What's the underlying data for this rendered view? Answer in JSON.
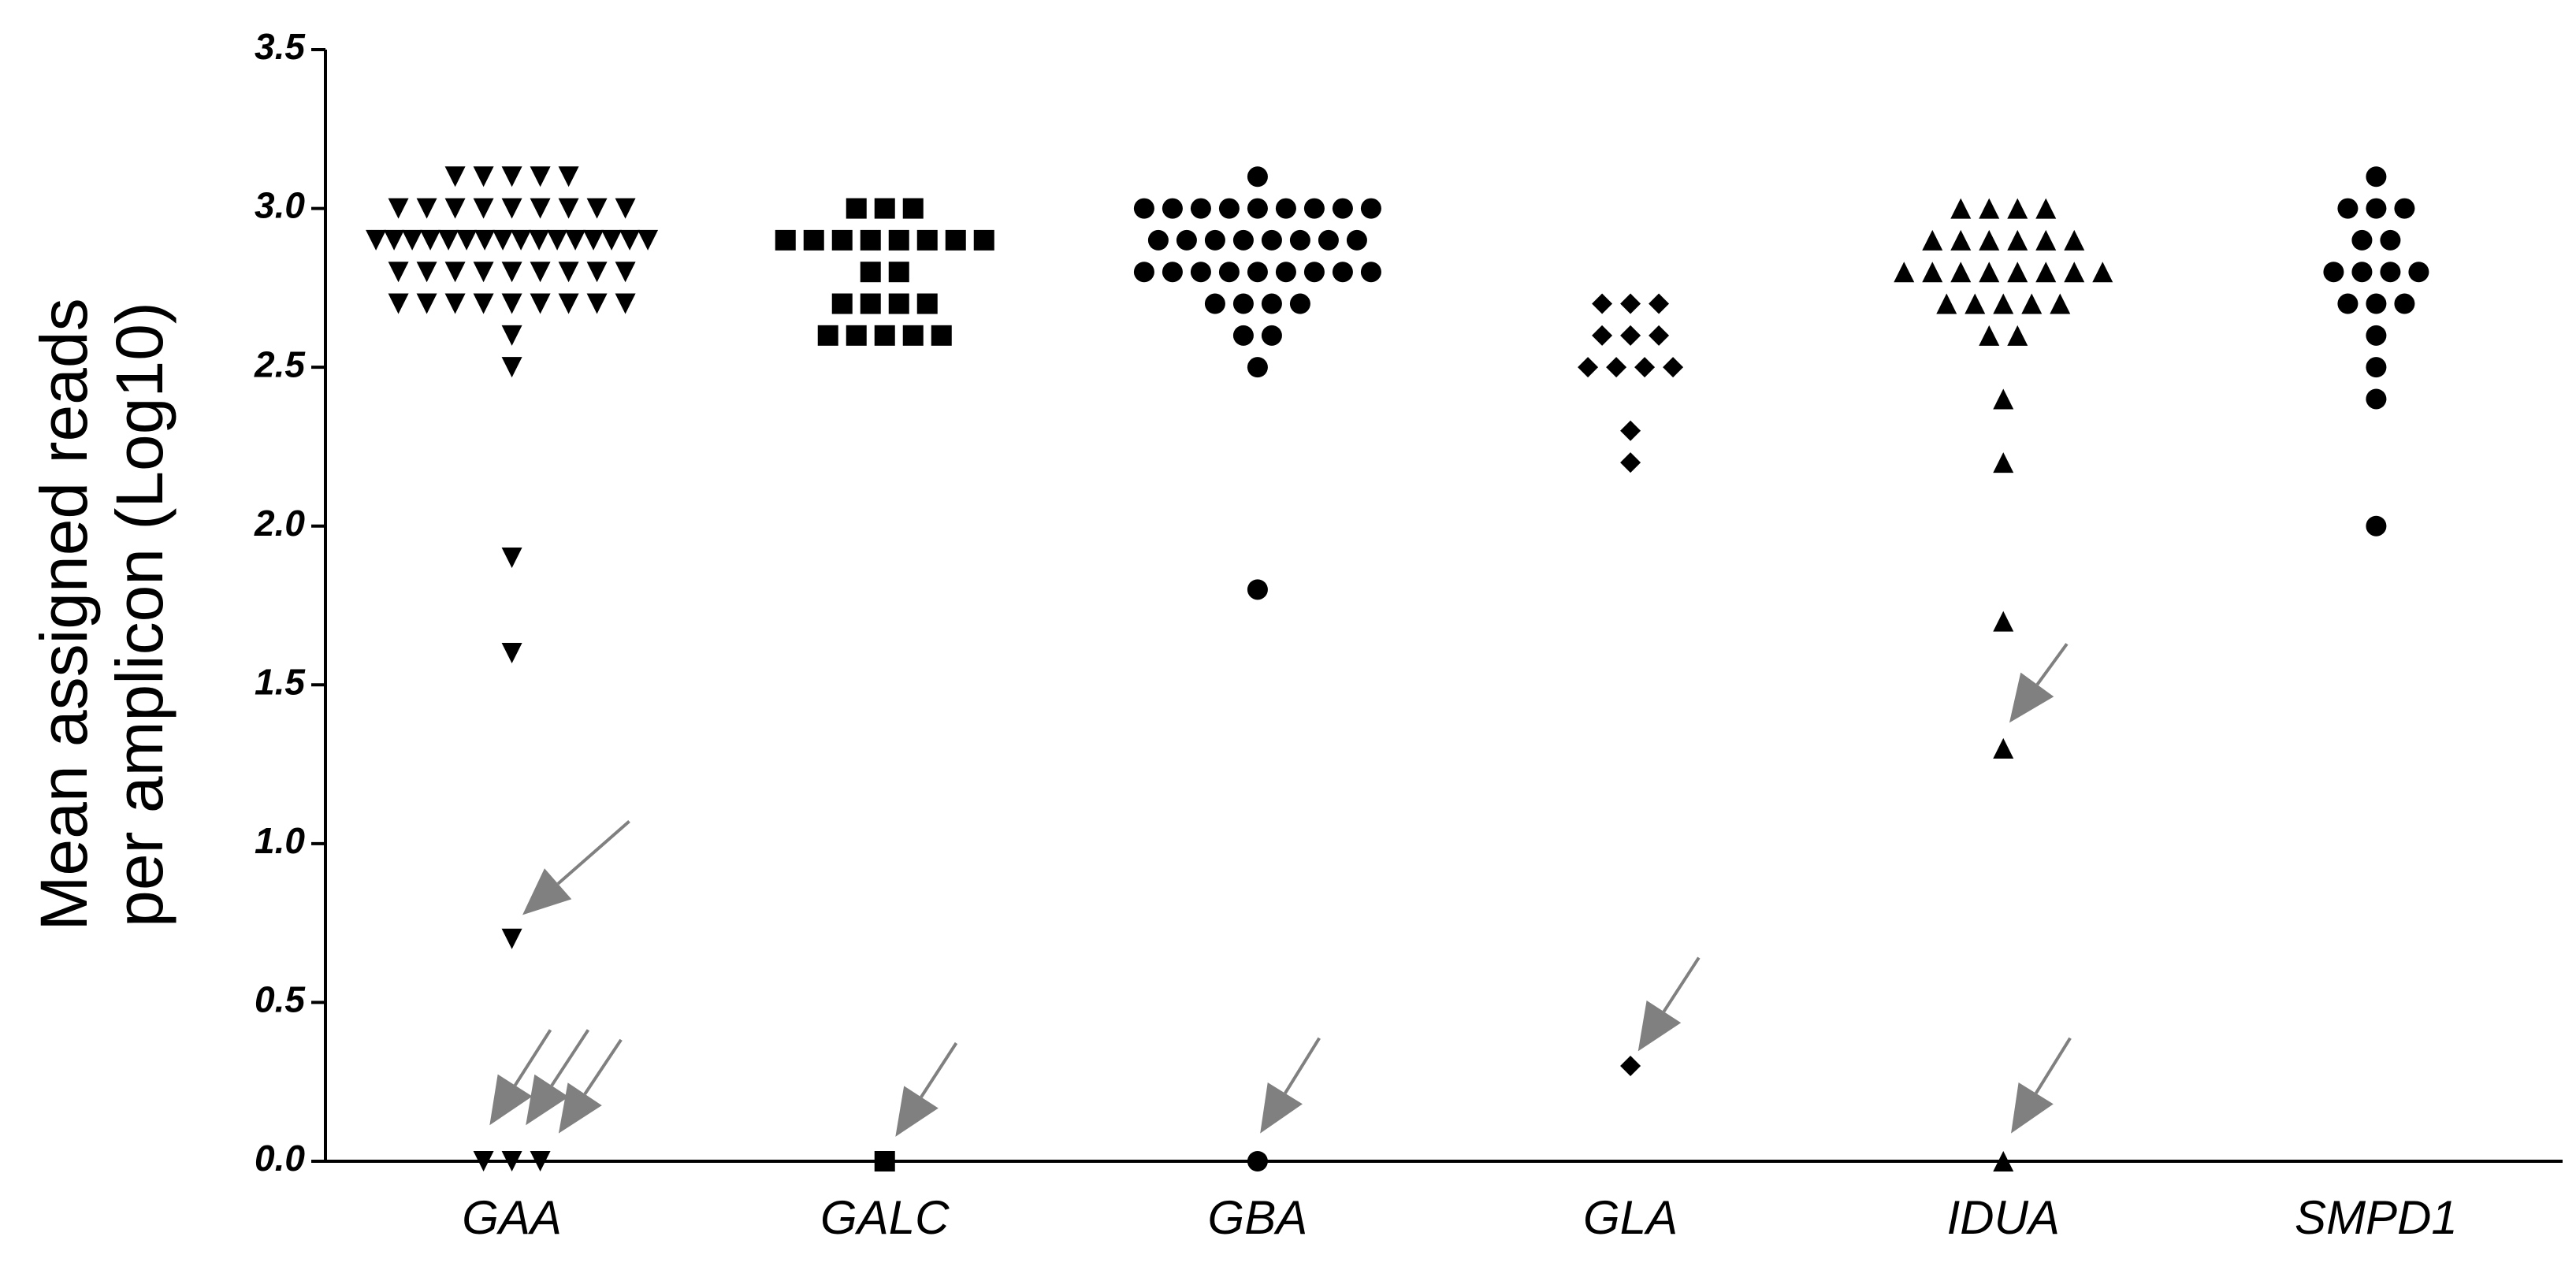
{
  "chart_data": {
    "type": "dotplot",
    "ylabel": [
      "Mean assigned reads",
      "per amplicon (Log10)"
    ],
    "categories": [
      "GAA",
      "GALC",
      "GBA",
      "GLA",
      "IDUA",
      "SMPD1"
    ],
    "markers": [
      "triangle-down",
      "square",
      "circle",
      "diamond",
      "triangle-up",
      "circle"
    ],
    "color": "#000000",
    "values": [
      [
        3.1,
        3.1,
        3.1,
        3.1,
        3.1,
        3.0,
        3.0,
        3.0,
        3.0,
        3.0,
        3.0,
        3.0,
        3.0,
        3.0,
        2.9,
        2.9,
        2.9,
        2.9,
        2.9,
        2.9,
        2.9,
        2.9,
        2.9,
        2.9,
        2.9,
        2.9,
        2.9,
        2.9,
        2.9,
        2.9,
        2.8,
        2.8,
        2.8,
        2.8,
        2.8,
        2.8,
        2.8,
        2.8,
        2.8,
        2.7,
        2.7,
        2.7,
        2.7,
        2.7,
        2.7,
        2.7,
        2.7,
        2.7,
        2.6,
        2.5,
        1.9,
        1.6,
        0.7,
        0,
        0,
        0
      ],
      [
        3.0,
        3.0,
        3.0,
        2.9,
        2.9,
        2.9,
        2.9,
        2.9,
        2.9,
        2.9,
        2.9,
        2.8,
        2.8,
        2.7,
        2.7,
        2.7,
        2.7,
        2.6,
        2.6,
        2.6,
        2.6,
        2.6,
        0
      ],
      [
        3.1,
        3.0,
        3.0,
        3.0,
        3.0,
        3.0,
        3.0,
        3.0,
        3.0,
        3.0,
        2.9,
        2.9,
        2.9,
        2.9,
        2.9,
        2.9,
        2.9,
        2.9,
        2.8,
        2.8,
        2.8,
        2.8,
        2.8,
        2.8,
        2.8,
        2.8,
        2.8,
        2.7,
        2.7,
        2.7,
        2.7,
        2.6,
        2.6,
        2.5,
        1.8,
        0
      ],
      [
        2.7,
        2.7,
        2.7,
        2.6,
        2.6,
        2.6,
        2.5,
        2.5,
        2.5,
        2.5,
        2.3,
        2.2,
        0.3
      ],
      [
        3.0,
        3.0,
        3.0,
        3.0,
        2.9,
        2.9,
        2.9,
        2.9,
        2.9,
        2.9,
        2.8,
        2.8,
        2.8,
        2.8,
        2.8,
        2.8,
        2.8,
        2.8,
        2.7,
        2.7,
        2.7,
        2.7,
        2.7,
        2.6,
        2.6,
        2.4,
        2.2,
        1.7,
        1.3,
        0
      ],
      [
        3.1,
        3.0,
        3.0,
        3.0,
        2.9,
        2.9,
        2.8,
        2.8,
        2.8,
        2.8,
        2.7,
        2.7,
        2.7,
        2.6,
        2.5,
        2.4,
        2.0
      ]
    ],
    "ylim": [
      0,
      3.5
    ],
    "yticks": [
      {
        "value": 0,
        "label": "0.0"
      },
      0.5,
      {
        "value": 1,
        "label": "1.0"
      },
      1.5,
      {
        "value": 2,
        "label": "2.0"
      },
      2.5,
      {
        "value": 3,
        "label": "3.0"
      },
      3.5
    ]
  }
}
